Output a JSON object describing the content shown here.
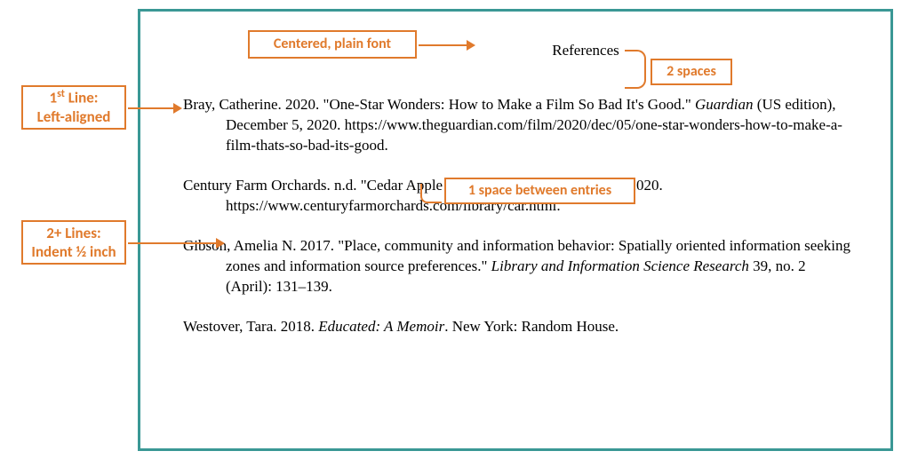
{
  "colors": {
    "frame_border": "#3a9895",
    "callout_border": "#e07a2c",
    "callout_text": "#e07a2c",
    "body_text": "#000000",
    "background": "#ffffff"
  },
  "typography": {
    "body_font": "Times New Roman",
    "callout_font": "Calibri",
    "body_size_pt": 13,
    "callout_size_pt": 12
  },
  "title": "References",
  "callouts": {
    "centered": "Centered, plain font",
    "two_spaces": "2 spaces",
    "one_space": "1 space between entries",
    "first_line_pre": "1",
    "first_line_sup": "st",
    "first_line_post": " Line:",
    "first_line_l2": "Left-aligned",
    "second_l1": "2+ Lines:",
    "second_l2": "Indent ½ inch"
  },
  "entries": [
    {
      "pre": "Bray, Catherine. 2020. \"One-Star Wonders: How to Make a Film So Bad It's Good.\" ",
      "italic": "Guardian",
      "post": " (US edition), December 5, 2020. https://www.theguardian.com/film/2020/dec/05/one-star-wonders-how-to-make-a-film-thats-so-bad-its-good."
    },
    {
      "pre": "Century Farm Orchards. n.d. \"Cedar Apple Rust.\" Accessed December 5, 2020. https://www.centuryfarmorchards.com/library/car.html.",
      "italic": "",
      "post": ""
    },
    {
      "pre": "Gibson, Amelia N. 2017. \"Place, community and information behavior: Spatially oriented information seeking zones and information source preferences.\" ",
      "italic": "Library and Information Science Research",
      "post": " 39, no. 2 (April): 131–139."
    },
    {
      "pre": "Westover, Tara. 2018. ",
      "italic": "Educated: A Memoir",
      "post": ". New York: Random House."
    }
  ]
}
